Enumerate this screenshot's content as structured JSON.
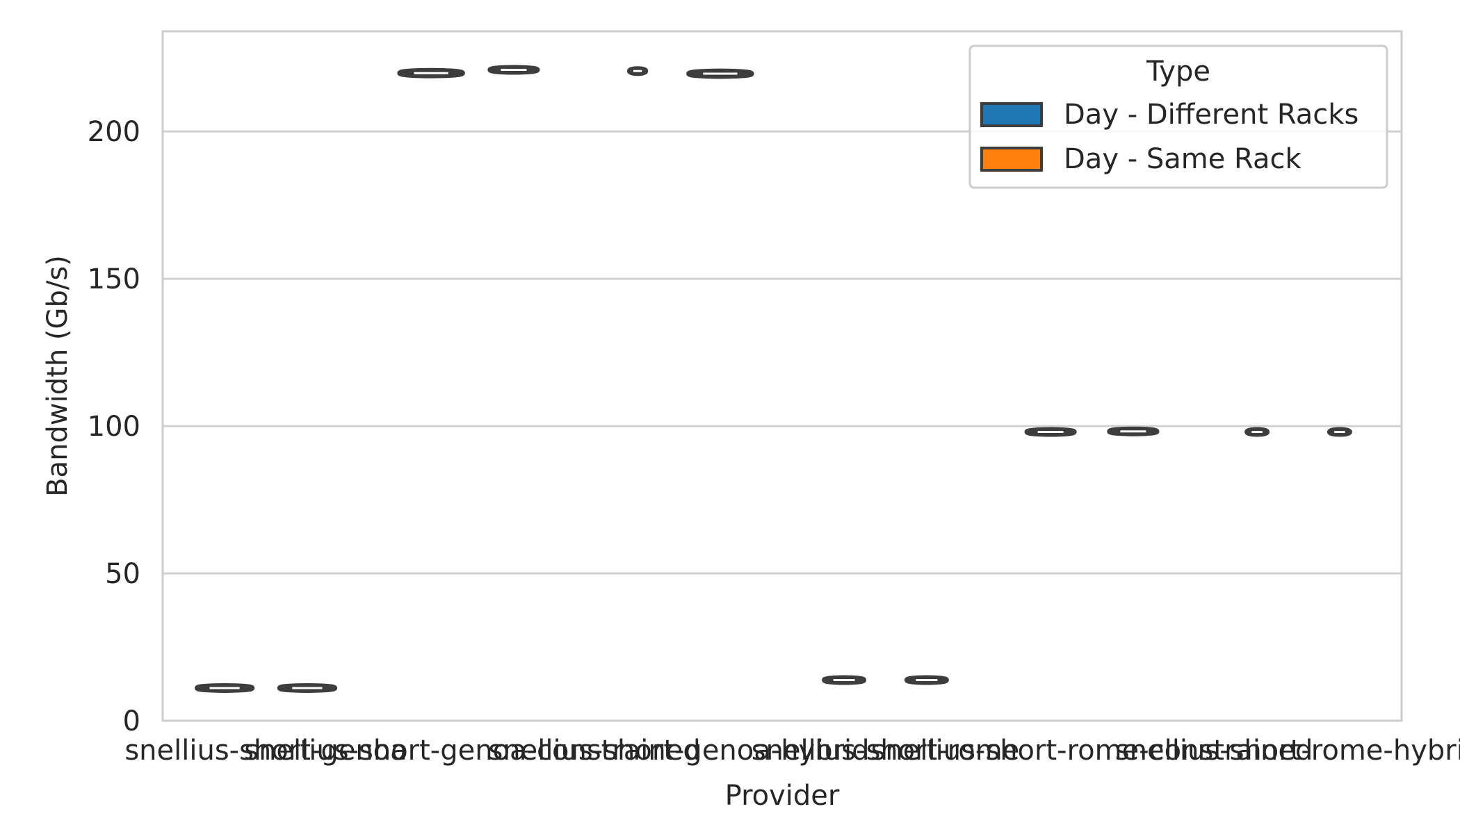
{
  "chart_data": {
    "type": "violin",
    "title": "",
    "xlabel": "Provider",
    "ylabel": "Bandwidth (Gb/s)",
    "ylim": [
      0,
      234
    ],
    "yticks": [
      0,
      50,
      100,
      150,
      200
    ],
    "grid": "horizontal",
    "categories": [
      "snellius-short-genoa",
      "snellius-short-genoa-constrained",
      "snellius-short-genoa-hybrid",
      "snellius-short-rome",
      "snellius-short-rome-constrained",
      "snellius-short-rome-hybrid"
    ],
    "legend": {
      "title": "Type",
      "placement": "top-right"
    },
    "series": [
      {
        "name": "Day - Different Racks",
        "color": "#1f77b4",
        "values": [
          11.1,
          219.8,
          220.5,
          13.8,
          98.0,
          98.0
        ],
        "spread": [
          0.7,
          0.8,
          0.2,
          0.5,
          0.6,
          0.25
        ]
      },
      {
        "name": "Day - Same Rack",
        "color": "#ff7f0e",
        "values": [
          11.1,
          220.9,
          219.6,
          13.8,
          98.2,
          98.0
        ],
        "spread": [
          0.7,
          0.6,
          0.8,
          0.5,
          0.6,
          0.25
        ]
      }
    ]
  }
}
